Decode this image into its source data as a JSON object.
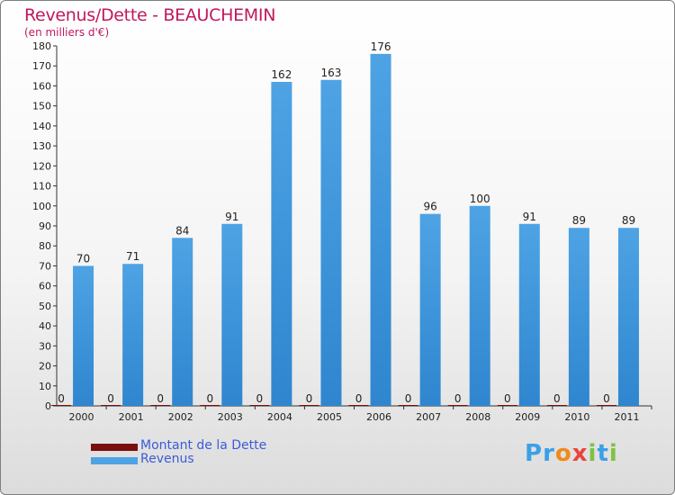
{
  "header": {
    "title": "Revenus/Dette - BEAUCHEMIN",
    "subtitle": "(en milliers d'€)"
  },
  "legend": {
    "items": [
      {
        "label": "Montant de la Dette",
        "color": "#7a0d0d"
      },
      {
        "label": "Revenus",
        "color": "#4ea3e4"
      }
    ]
  },
  "logo": {
    "text": "Proxiti"
  },
  "colors": {
    "title": "#c0185f",
    "bar_revenue": "#4ea3e4",
    "bar_revenue_dark": "#2f86cf",
    "bar_debt": "#7a0d0d",
    "legend_text": "#3c5bd8"
  },
  "chart_data": {
    "type": "bar",
    "title": "Revenus/Dette - BEAUCHEMIN",
    "ylabel": "(en milliers d'€)",
    "categories": [
      "2000",
      "2001",
      "2002",
      "2003",
      "2004",
      "2005",
      "2006",
      "2007",
      "2008",
      "2009",
      "2010",
      "2011"
    ],
    "series": [
      {
        "name": "Montant de la Dette",
        "values": [
          0,
          0,
          0,
          0,
          0,
          0,
          0,
          0,
          0,
          0,
          0,
          0
        ]
      },
      {
        "name": "Revenus",
        "values": [
          70,
          71,
          84,
          91,
          162,
          163,
          176,
          96,
          100,
          91,
          89,
          89
        ]
      }
    ],
    "ylim": [
      0,
      180
    ],
    "ytick_step": 10,
    "grid": false,
    "legend_position": "bottom-left"
  }
}
